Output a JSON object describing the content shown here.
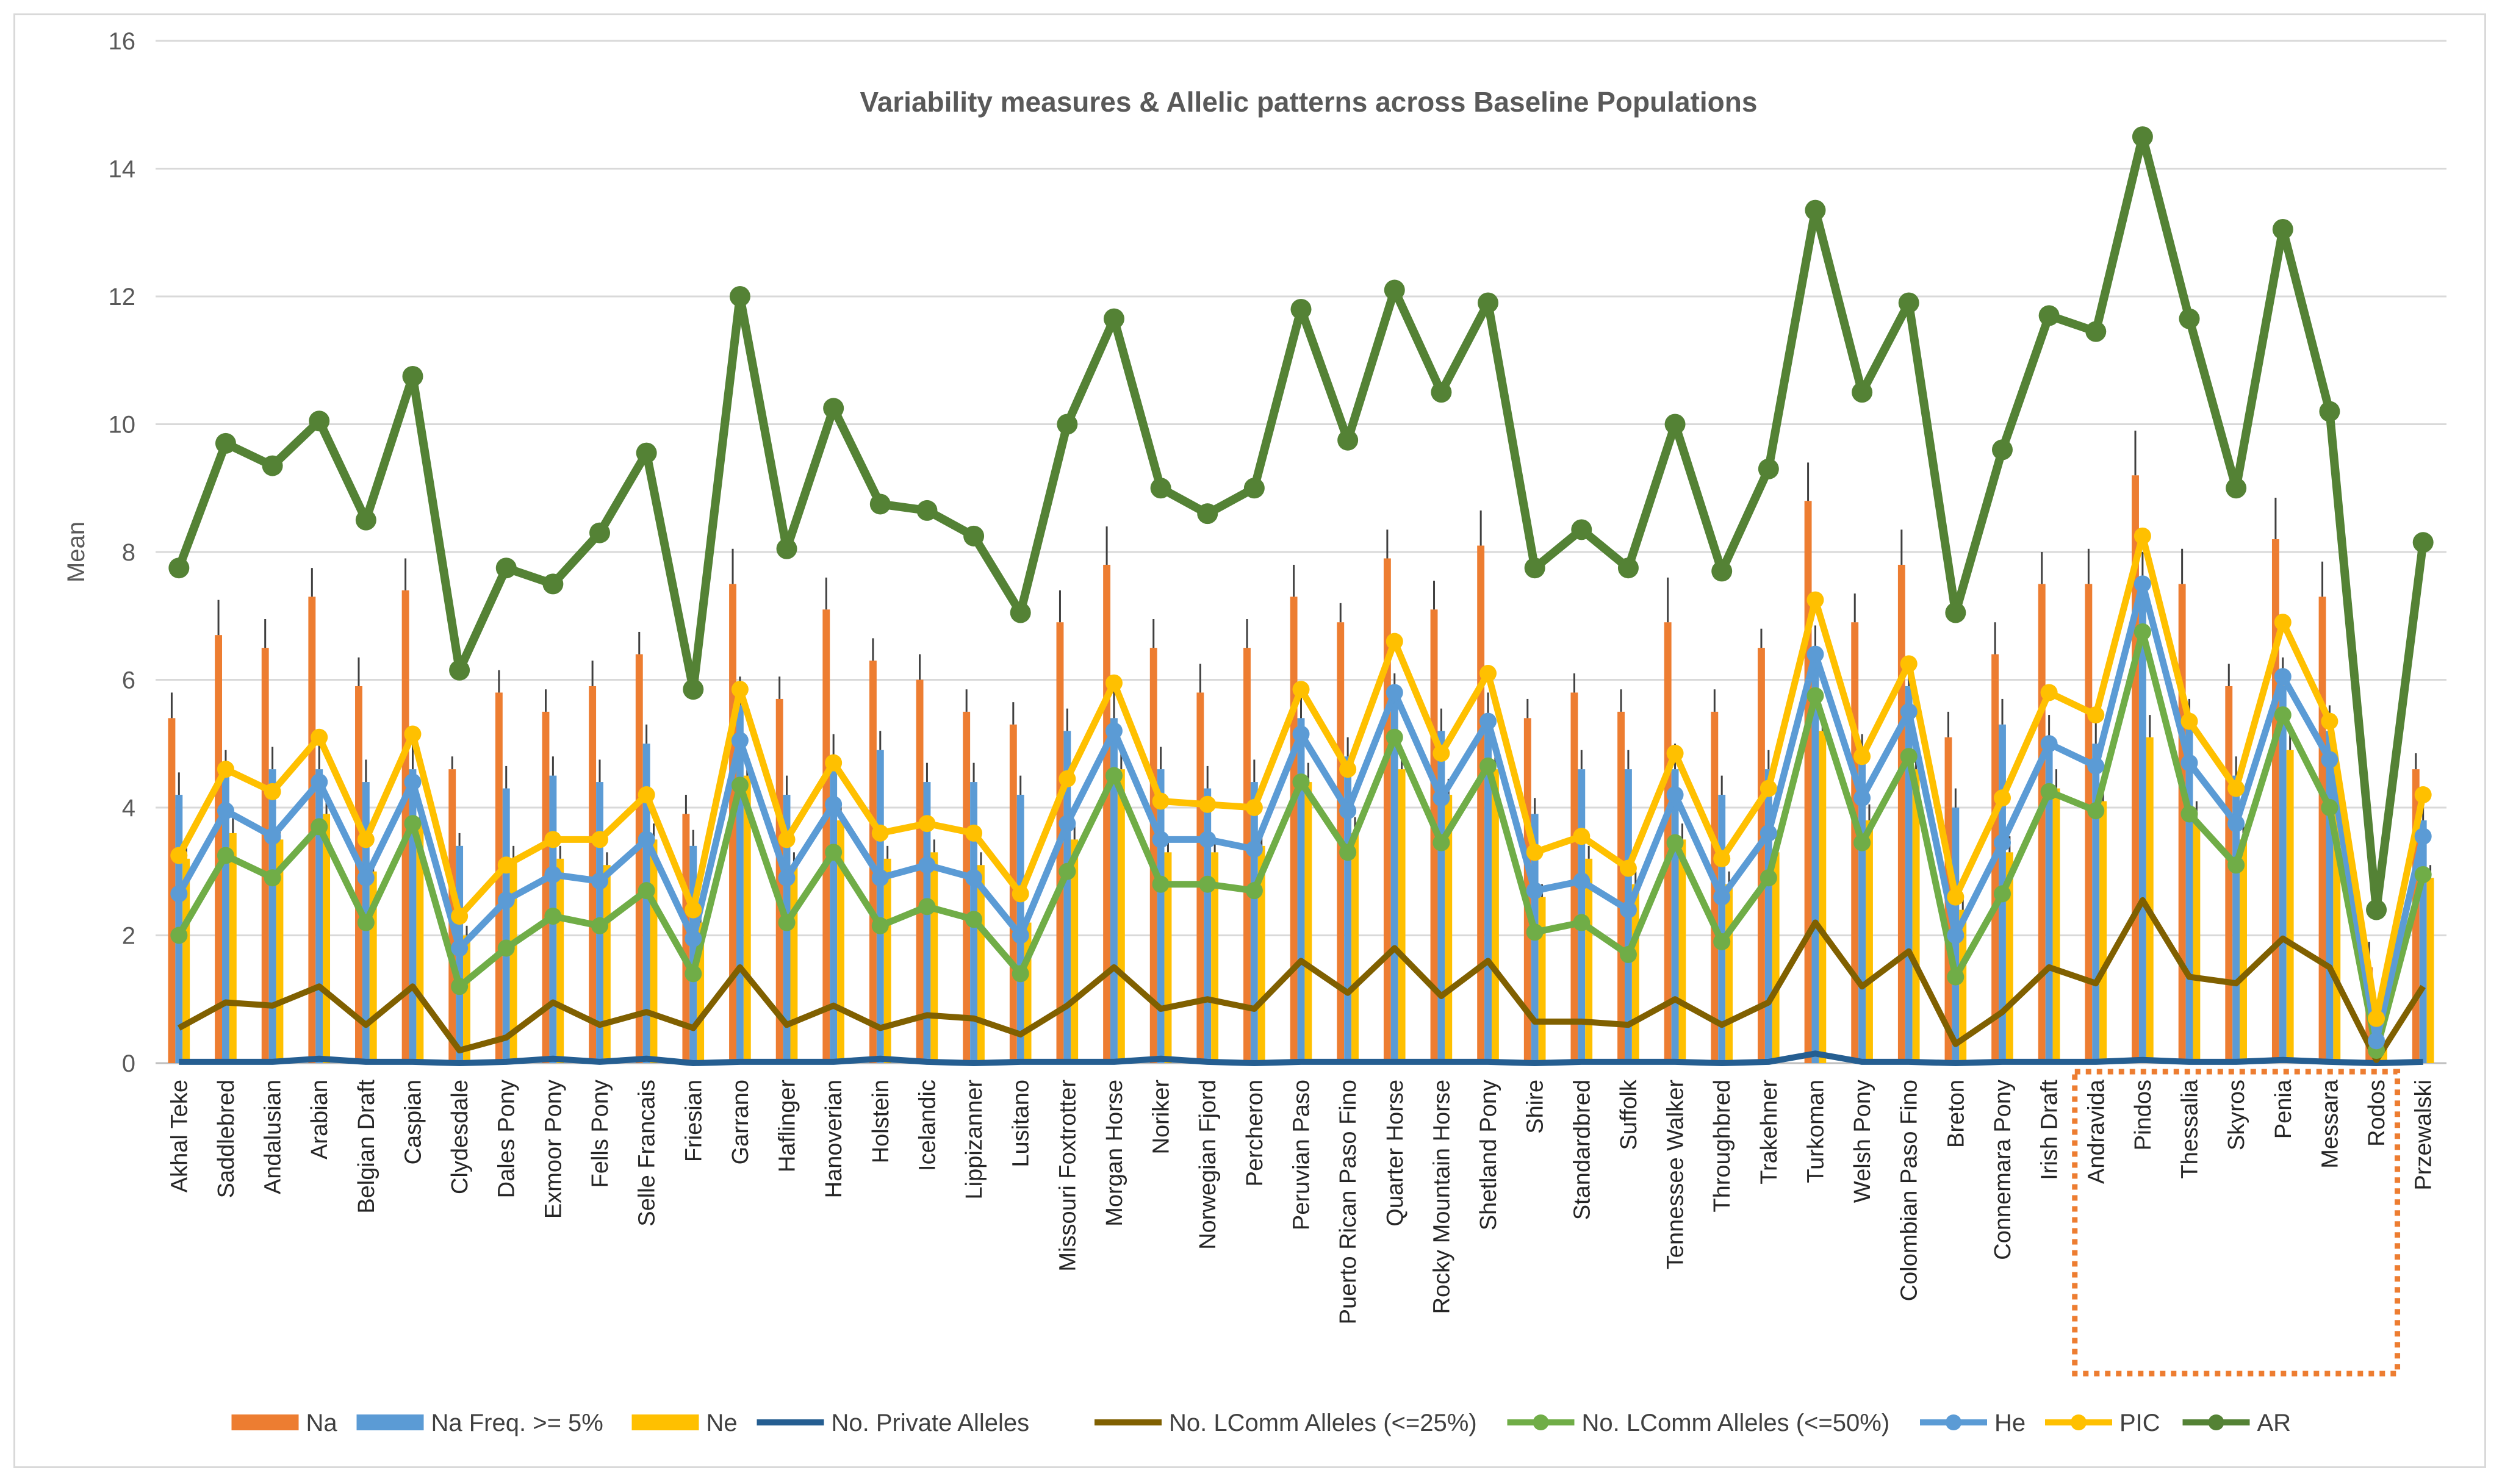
{
  "chart_data": {
    "type": "bar+line",
    "title": "Variability measures & Allelic patterns across Baseline Populations",
    "ylabel": "Mean",
    "xlabel": "",
    "ylim": [
      0,
      16
    ],
    "yticks": [
      0,
      2,
      4,
      6,
      8,
      10,
      12,
      14,
      16
    ],
    "grid": true,
    "legend_position": "bottom",
    "highlight_box": {
      "categories": [
        "Andravida",
        "Pindos",
        "Thessalia",
        "Skyros",
        "Penia",
        "Messara",
        "Rodos"
      ],
      "color": "#ED7D31",
      "style": "dotted"
    },
    "categories": [
      "Akhal Teke",
      "Saddlebred",
      "Andalusian",
      "Arabian",
      "Belgian Draft",
      "Caspian",
      "Clydesdale",
      "Dales Pony",
      "Exmoor Pony",
      "Fells Pony",
      "Selle Francais",
      "Friesian",
      "Garrano",
      "Haflinger",
      "Hanoverian",
      "Holstein",
      "Icelandic",
      "Lippizanner",
      "Lusitano",
      "Missouri Foxtrotter",
      "Morgan Horse",
      "Noriker",
      "Norwegian Fjord",
      "Percheron",
      "Peruvian Paso",
      "Puerto Rican Paso Fino",
      "Quarter Horse",
      "Rocky Mountain Horse",
      "Shetland Pony",
      "Shire",
      "Standardbred",
      "Suffolk",
      "Tennessee Walker",
      "Throughbred",
      "Trakehner",
      "Turkoman",
      "Welsh Pony",
      "Colombian Paso Fino",
      "Breton",
      "Connemara Pony",
      "Irish Draft",
      "Andravida",
      "Pindos",
      "Thessalia",
      "Skyros",
      "Penia",
      "Messara",
      "Rodos",
      "Przewalski"
    ],
    "series": [
      {
        "name": "Na",
        "kind": "bar",
        "color": "#ED7D31",
        "values": [
          5.4,
          6.7,
          6.5,
          7.3,
          5.9,
          7.4,
          4.6,
          5.8,
          5.5,
          5.9,
          6.4,
          3.9,
          7.5,
          5.7,
          7.1,
          6.3,
          6.0,
          5.5,
          5.3,
          6.9,
          7.8,
          6.5,
          5.8,
          6.5,
          7.3,
          6.9,
          7.9,
          7.1,
          8.1,
          5.4,
          5.8,
          5.5,
          6.9,
          5.5,
          6.5,
          8.8,
          6.9,
          7.8,
          5.1,
          6.4,
          7.5,
          7.5,
          9.2,
          7.5,
          5.9,
          8.2,
          7.3,
          1.5,
          4.6
        ],
        "errors": [
          0.4,
          0.55,
          0.45,
          0.45,
          0.45,
          0.5,
          0.2,
          0.35,
          0.35,
          0.4,
          0.35,
          0.3,
          0.55,
          0.35,
          0.5,
          0.35,
          0.4,
          0.35,
          0.35,
          0.5,
          0.6,
          0.45,
          0.45,
          0.45,
          0.5,
          0.3,
          0.45,
          0.45,
          0.55,
          0.3,
          0.3,
          0.35,
          0.7,
          0.35,
          0.3,
          0.6,
          0.45,
          0.55,
          0.4,
          0.5,
          0.5,
          0.55,
          0.7,
          0.55,
          0.35,
          0.65,
          0.55,
          0.4,
          0.25
        ]
      },
      {
        "name": "Na Freq. >= 5%",
        "kind": "bar",
        "color": "#5B9BD5",
        "values": [
          4.2,
          4.5,
          4.6,
          4.6,
          4.4,
          4.6,
          3.4,
          4.3,
          4.5,
          4.4,
          5.0,
          3.4,
          5.6,
          4.2,
          4.8,
          4.9,
          4.4,
          4.4,
          4.2,
          5.2,
          5.4,
          4.6,
          4.3,
          4.4,
          5.4,
          4.8,
          5.7,
          5.2,
          5.4,
          3.9,
          4.6,
          4.6,
          4.6,
          4.2,
          4.6,
          6.4,
          4.8,
          5.9,
          4.0,
          5.3,
          5.1,
          5.0,
          7.5,
          5.3,
          4.5,
          5.9,
          5.2,
          0.6,
          3.8
        ],
        "errors": [
          0.35,
          0.4,
          0.35,
          0.4,
          0.35,
          0.4,
          0.2,
          0.35,
          0.3,
          0.35,
          0.3,
          0.25,
          0.45,
          0.3,
          0.35,
          0.3,
          0.3,
          0.3,
          0.3,
          0.35,
          0.45,
          0.35,
          0.35,
          0.35,
          0.45,
          0.3,
          0.4,
          0.35,
          0.4,
          0.25,
          0.3,
          0.3,
          0.4,
          0.3,
          0.3,
          0.45,
          0.35,
          0.45,
          0.3,
          0.4,
          0.35,
          0.4,
          0.5,
          0.4,
          0.3,
          0.45,
          0.4,
          0.2,
          0.2
        ]
      },
      {
        "name": "Ne",
        "kind": "bar",
        "color": "#FFC000",
        "values": [
          3.2,
          3.6,
          3.5,
          3.9,
          3.0,
          3.8,
          2.0,
          3.2,
          3.2,
          3.1,
          3.5,
          2.2,
          4.5,
          3.1,
          3.8,
          3.2,
          3.3,
          3.1,
          2.2,
          3.5,
          4.6,
          3.3,
          3.3,
          3.4,
          4.4,
          3.6,
          4.6,
          4.2,
          4.6,
          2.6,
          3.2,
          2.8,
          3.5,
          2.8,
          3.3,
          5.2,
          3.8,
          4.6,
          2.4,
          3.3,
          4.3,
          4.1,
          5.1,
          3.8,
          3.5,
          4.9,
          3.9,
          0.3,
          2.9
        ],
        "errors": [
          0.2,
          0.25,
          0.25,
          0.3,
          0.2,
          0.25,
          0.15,
          0.2,
          0.2,
          0.2,
          0.25,
          0.15,
          0.3,
          0.2,
          0.25,
          0.2,
          0.2,
          0.2,
          0.15,
          0.25,
          0.3,
          0.2,
          0.2,
          0.2,
          0.3,
          0.25,
          0.3,
          0.25,
          0.3,
          0.2,
          0.2,
          0.2,
          0.25,
          0.2,
          0.2,
          0.3,
          0.25,
          0.3,
          0.2,
          0.25,
          0.3,
          0.3,
          0.35,
          0.3,
          0.25,
          0.3,
          0.3,
          0.1,
          0.2
        ]
      },
      {
        "name": "No. Private Alleles",
        "kind": "line",
        "color": "#255E91",
        "marker": false,
        "values": [
          0.02,
          0.02,
          0.02,
          0.07,
          0.02,
          0.02,
          0.0,
          0.02,
          0.07,
          0.02,
          0.07,
          0.0,
          0.02,
          0.02,
          0.02,
          0.07,
          0.02,
          0.0,
          0.02,
          0.02,
          0.02,
          0.07,
          0.02,
          0.0,
          0.02,
          0.02,
          0.02,
          0.02,
          0.02,
          0.0,
          0.02,
          0.02,
          0.02,
          0.0,
          0.02,
          0.15,
          0.02,
          0.02,
          0.0,
          0.02,
          0.02,
          0.02,
          0.05,
          0.02,
          0.02,
          0.05,
          0.02,
          0.0,
          0.02
        ]
      },
      {
        "name": "No. LComm Alleles (<=25%)",
        "kind": "line",
        "color": "#806000",
        "marker": false,
        "values": [
          0.55,
          0.95,
          0.9,
          1.2,
          0.6,
          1.2,
          0.2,
          0.4,
          0.95,
          0.6,
          0.8,
          0.55,
          1.5,
          0.6,
          0.9,
          0.55,
          0.75,
          0.7,
          0.45,
          0.9,
          1.5,
          0.85,
          1.0,
          0.85,
          1.6,
          1.1,
          1.8,
          1.05,
          1.6,
          0.65,
          0.65,
          0.6,
          1.0,
          0.6,
          0.95,
          2.2,
          1.2,
          1.75,
          0.3,
          0.8,
          1.5,
          1.25,
          2.55,
          1.35,
          1.25,
          1.95,
          1.5,
          0.05,
          1.2
        ]
      },
      {
        "name": "No. LComm Alleles (<=50%)",
        "kind": "line",
        "color": "#70AD47",
        "marker": true,
        "values": [
          2.0,
          3.25,
          2.9,
          3.7,
          2.2,
          3.75,
          1.2,
          1.8,
          2.3,
          2.15,
          2.7,
          1.4,
          4.35,
          2.2,
          3.3,
          2.15,
          2.45,
          2.25,
          1.4,
          3.0,
          4.5,
          2.8,
          2.8,
          2.7,
          4.4,
          3.3,
          5.1,
          3.45,
          4.65,
          2.05,
          2.2,
          1.7,
          3.45,
          1.9,
          2.9,
          5.75,
          3.45,
          4.8,
          1.35,
          2.65,
          4.25,
          3.95,
          6.75,
          3.9,
          3.1,
          5.45,
          4.0,
          0.2,
          2.95
        ]
      },
      {
        "name": "He",
        "kind": "line",
        "color": "#5B9BD5",
        "marker": true,
        "values": [
          2.65,
          3.95,
          3.55,
          4.4,
          2.9,
          4.4,
          1.8,
          2.55,
          2.95,
          2.85,
          3.5,
          1.95,
          5.05,
          2.9,
          4.05,
          2.9,
          3.1,
          2.9,
          2.0,
          3.75,
          5.2,
          3.5,
          3.5,
          3.35,
          5.15,
          3.95,
          5.8,
          4.15,
          5.35,
          2.7,
          2.85,
          2.4,
          4.2,
          2.6,
          3.6,
          6.4,
          4.15,
          5.5,
          2.0,
          3.45,
          5.0,
          4.65,
          7.5,
          4.7,
          3.75,
          6.05,
          4.75,
          0.35,
          3.55
        ]
      },
      {
        "name": "PIC",
        "kind": "line",
        "color": "#FFC000",
        "marker": true,
        "values": [
          3.25,
          4.6,
          4.25,
          5.1,
          3.5,
          5.15,
          2.3,
          3.1,
          3.5,
          3.5,
          4.2,
          2.4,
          5.85,
          3.5,
          4.7,
          3.6,
          3.75,
          3.6,
          2.65,
          4.45,
          5.95,
          4.1,
          4.05,
          4.0,
          5.85,
          4.6,
          6.6,
          4.85,
          6.1,
          3.3,
          3.55,
          3.05,
          4.85,
          3.2,
          4.3,
          7.25,
          4.8,
          6.25,
          2.6,
          4.15,
          5.8,
          5.45,
          8.25,
          5.35,
          4.3,
          6.9,
          5.35,
          0.7,
          4.2
        ]
      },
      {
        "name": "AR",
        "kind": "line",
        "color": "#548235",
        "marker": true,
        "values": [
          7.75,
          9.7,
          9.35,
          10.05,
          8.5,
          10.75,
          6.15,
          7.75,
          7.5,
          8.3,
          9.55,
          5.85,
          12.0,
          8.05,
          10.25,
          8.75,
          8.65,
          8.25,
          7.05,
          10.0,
          11.65,
          9.0,
          8.6,
          9.0,
          11.8,
          9.75,
          12.1,
          10.5,
          11.9,
          7.75,
          8.35,
          7.75,
          10.0,
          7.7,
          9.3,
          13.35,
          10.5,
          11.9,
          7.05,
          9.6,
          11.7,
          11.45,
          14.5,
          11.65,
          9.0,
          13.05,
          10.2,
          2.4,
          8.15
        ]
      }
    ]
  },
  "legend": {
    "items": [
      {
        "label": "Na",
        "color": "#ED7D31",
        "kind": "bar"
      },
      {
        "label": "Na Freq. >= 5%",
        "color": "#5B9BD5",
        "kind": "bar"
      },
      {
        "label": "Ne",
        "color": "#FFC000",
        "kind": "bar"
      },
      {
        "label": "No. Private Alleles",
        "color": "#255E91",
        "kind": "line"
      },
      {
        "label": "No. LComm Alleles (<=25%)",
        "color": "#806000",
        "kind": "line"
      },
      {
        "label": "No. LComm Alleles (<=50%)",
        "color": "#70AD47",
        "kind": "line-marker"
      },
      {
        "label": "He",
        "color": "#5B9BD5",
        "kind": "line-marker"
      },
      {
        "label": "PIC",
        "color": "#FFC000",
        "kind": "line-marker"
      },
      {
        "label": "AR",
        "color": "#548235",
        "kind": "line-marker"
      }
    ]
  }
}
